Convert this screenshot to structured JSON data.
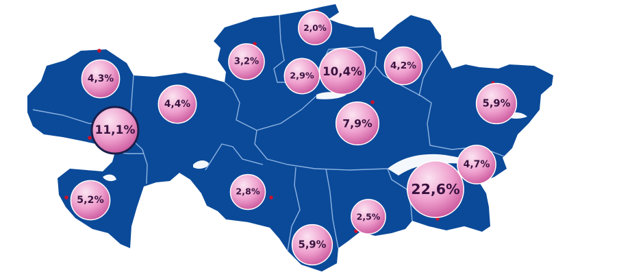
{
  "colors": {
    "land": "#0b4a99",
    "border": "#8fb4e2",
    "water": "#f4f8fc",
    "bubble_light": "#fbe3f1",
    "bubble_mid": "#ee9fcd",
    "bubble_dark": "#c9549a",
    "bubble_outline": "#ffffff",
    "highlight_outline": "#1a1f4a",
    "marker": "#c8102e",
    "label": "#3a1240"
  },
  "regions": [
    {
      "label": "2,0%",
      "value": 2.0
    },
    {
      "label": "4,3%",
      "value": 4.3
    },
    {
      "label": "3,2%",
      "value": 3.2
    },
    {
      "label": "2,9%",
      "value": 2.9
    },
    {
      "label": "10,4%",
      "value": 10.4
    },
    {
      "label": "4,2%",
      "value": 4.2
    },
    {
      "label": "4,4%",
      "value": 4.4
    },
    {
      "label": "5,9%",
      "value": 5.9
    },
    {
      "label": "11,1%",
      "value": 11.1,
      "highlighted": true
    },
    {
      "label": "7,9%",
      "value": 7.9
    },
    {
      "label": "4,7%",
      "value": 4.7
    },
    {
      "label": "22,6%",
      "value": 22.6
    },
    {
      "label": "5,2%",
      "value": 5.2
    },
    {
      "label": "2,8%",
      "value": 2.8
    },
    {
      "label": "2,5%",
      "value": 2.5
    },
    {
      "label": "5,9%",
      "value": 5.9
    }
  ]
}
